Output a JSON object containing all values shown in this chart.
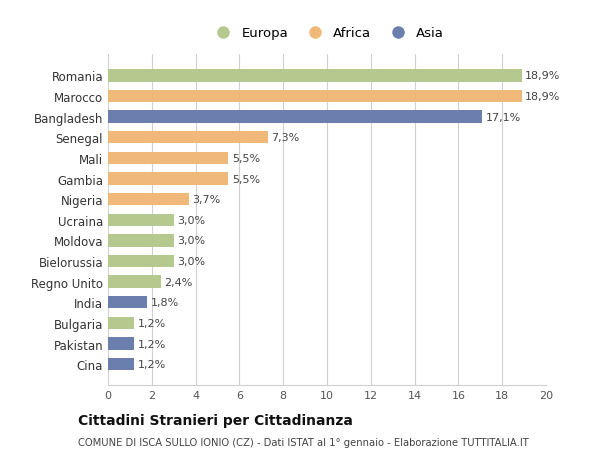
{
  "categories": [
    "Cina",
    "Pakistan",
    "Bulgaria",
    "India",
    "Regno Unito",
    "Bielorussia",
    "Moldova",
    "Ucraina",
    "Nigeria",
    "Gambia",
    "Mali",
    "Senegal",
    "Bangladesh",
    "Marocco",
    "Romania"
  ],
  "values": [
    1.2,
    1.2,
    1.2,
    1.8,
    2.4,
    3.0,
    3.0,
    3.0,
    3.7,
    5.5,
    5.5,
    7.3,
    17.1,
    18.9,
    18.9
  ],
  "labels": [
    "1,2%",
    "1,2%",
    "1,2%",
    "1,8%",
    "2,4%",
    "3,0%",
    "3,0%",
    "3,0%",
    "3,7%",
    "5,5%",
    "5,5%",
    "7,3%",
    "17,1%",
    "18,9%",
    "18,9%"
  ],
  "continents": [
    "Asia",
    "Asia",
    "Europa",
    "Asia",
    "Europa",
    "Europa",
    "Europa",
    "Europa",
    "Africa",
    "Africa",
    "Africa",
    "Africa",
    "Asia",
    "Africa",
    "Europa"
  ],
  "colors": {
    "Europa": "#b5c98e",
    "Africa": "#f0b97a",
    "Asia": "#6b7faf"
  },
  "legend": [
    "Europa",
    "Africa",
    "Asia"
  ],
  "legend_colors": [
    "#b5c98e",
    "#f0b97a",
    "#6b7faf"
  ],
  "title": "Cittadini Stranieri per Cittadinanza",
  "subtitle": "COMUNE DI ISCA SULLO IONIO (CZ) - Dati ISTAT al 1° gennaio - Elaborazione TUTTITALIA.IT",
  "xlim": [
    0,
    20
  ],
  "xticks": [
    0,
    2,
    4,
    6,
    8,
    10,
    12,
    14,
    16,
    18,
    20
  ],
  "background_color": "#ffffff",
  "grid_color": "#d0d0d0"
}
